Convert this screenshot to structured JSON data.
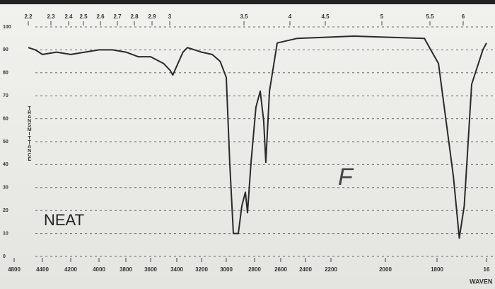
{
  "chart_data": {
    "type": "line",
    "xlabel": "WAVEN",
    "ylabel": "TRANSMITTANCE",
    "annotations": [
      "NEAT",
      "F"
    ],
    "x": [
      4600,
      4500,
      4400,
      4300,
      4200,
      4100,
      4000,
      3900,
      3800,
      3700,
      3600,
      3500,
      3450,
      3430,
      3400,
      3350,
      3314,
      3200,
      3114,
      3050,
      3000,
      2975,
      2950,
      2915,
      2890,
      2865,
      2850,
      2825,
      2790,
      2757,
      2730,
      2714,
      2686,
      2627,
      2468,
      2117,
      1849,
      1794,
      1734,
      1710,
      1690,
      1660,
      1615,
      1600
    ],
    "values": [
      91,
      90,
      88,
      89,
      88,
      89,
      90,
      90,
      89,
      87,
      87,
      84,
      81,
      79,
      83,
      89,
      91,
      89,
      88,
      85,
      78,
      40,
      10,
      10,
      22,
      28,
      19,
      41,
      65,
      72,
      59,
      41,
      72,
      93,
      95,
      96,
      95,
      84,
      35,
      8,
      22,
      75,
      90,
      93
    ],
    "color": "#2a2a2a",
    "xlim": [
      4800,
      1600
    ],
    "xticks": [
      4800,
      4400,
      4200,
      4000,
      3800,
      3600,
      3400,
      3200,
      3000,
      2800,
      2600,
      2400,
      2200,
      2000,
      1800,
      {
        "value": 1600,
        "label": "16"
      }
    ],
    "x2ticks": [
      2.2,
      2.3,
      2.4,
      2.5,
      2.6,
      2.7,
      2.8,
      2.9,
      3,
      3.5,
      4,
      4.5,
      5,
      5.5,
      6
    ],
    "ylim": [
      0,
      100
    ],
    "yticks": [
      0,
      10,
      20,
      30,
      40,
      50,
      60,
      70,
      80,
      90,
      100
    ],
    "grid": true
  }
}
